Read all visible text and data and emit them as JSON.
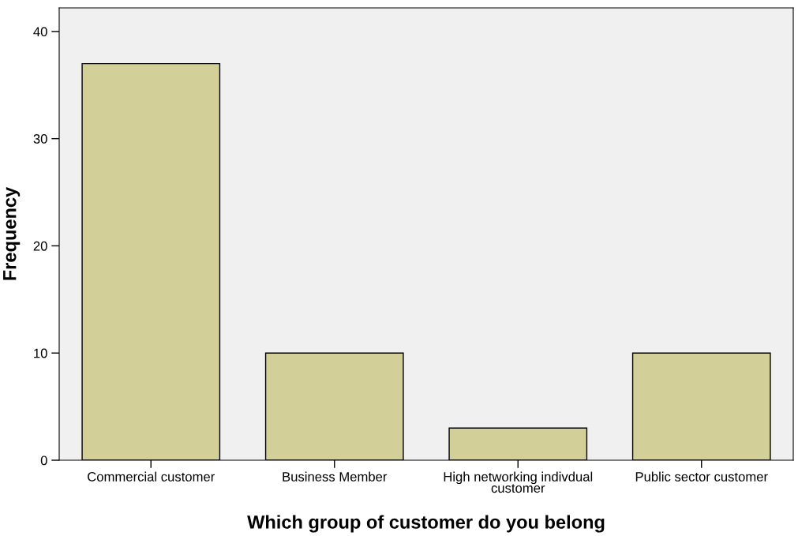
{
  "chart_data": {
    "type": "bar",
    "xlabel": "Which group of customer do you belong",
    "ylabel": "Frequency",
    "categories": [
      "Commercial customer",
      "Business Member",
      "High networking indivdual\ncustomer",
      "Public sector customer"
    ],
    "values": [
      37,
      10,
      3,
      10
    ],
    "color": "#d3cf99",
    "ylim": [
      0,
      42.2
    ],
    "yticks": [
      0,
      10,
      20,
      30,
      40
    ],
    "grid": false
  }
}
